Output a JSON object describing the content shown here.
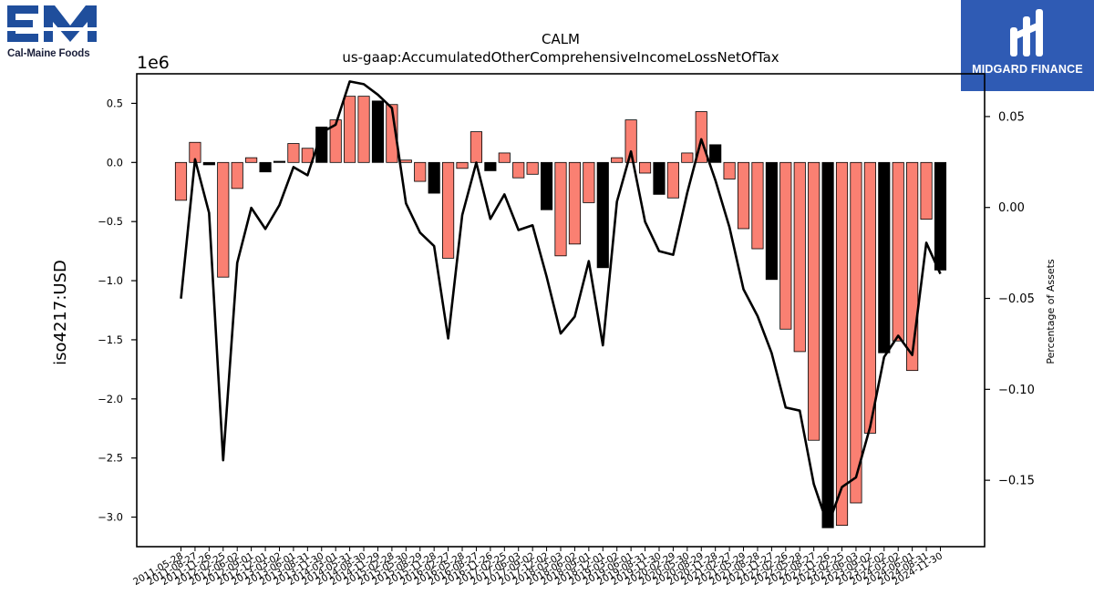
{
  "logos": {
    "left_brand": "Cal-Maine Foods",
    "left_mark": "EM",
    "right_brand": "MIDGARD FINANCE",
    "right_bg_color": "#2f5bb4",
    "left_color": "#1f4e9c"
  },
  "chart_data": {
    "type": "bar",
    "title": "CALM",
    "subtitle": "us-gaap:AccumulatedOtherComprehensiveIncomeLossNetOfTax",
    "ylabel": "iso4217:USD",
    "y_offset_label": "1e6",
    "y2label": "Percentage of Assets",
    "ylim": [
      -3.25,
      0.75
    ],
    "y2lim": [
      -0.1865,
      0.0735
    ],
    "yticks": [
      "0.5",
      "0.0",
      "−0.5",
      "−1.0",
      "−1.5",
      "−2.0",
      "−2.5",
      "−3.0"
    ],
    "y2ticks": [
      "0.05",
      "0.00",
      "−0.05",
      "−0.10",
      "−0.15"
    ],
    "bar_colors": {
      "salmon": "#fa8072",
      "black": "#000000"
    },
    "categories": [
      "2011-05-28",
      "2011-08-27",
      "2011-11-26",
      "2012-02-25",
      "2012-06-02",
      "2012-09-01",
      "2012-12-01",
      "2013-03-02",
      "2013-06-01",
      "2013-08-31",
      "2013-11-30",
      "2014-03-01",
      "2014-05-31",
      "2014-08-30",
      "2014-11-29",
      "2015-02-28",
      "2015-05-30",
      "2015-08-29",
      "2015-11-28",
      "2016-02-27",
      "2016-05-28",
      "2016-08-27",
      "2016-11-26",
      "2017-02-25",
      "2017-06-03",
      "2017-09-02",
      "2017-12-02",
      "2018-03-03",
      "2018-06-02",
      "2018-09-01",
      "2018-12-01",
      "2019-03-02",
      "2019-06-01",
      "2019-08-31",
      "2019-11-30",
      "2020-02-29",
      "2020-05-30",
      "2020-08-29",
      "2020-11-28",
      "2021-02-27",
      "2021-05-29",
      "2021-08-28",
      "2021-11-27",
      "2022-02-26",
      "2022-05-28",
      "2022-08-27",
      "2022-11-26",
      "2023-02-25",
      "2023-06-03",
      "2023-09-02",
      "2023-12-02",
      "2024-03-02",
      "2024-06-01",
      "2024-08-31",
      "2024-11-30"
    ],
    "series": [
      {
        "values": [
          -0.32,
          0.17,
          -0.02,
          -0.97,
          -0.22,
          0.04,
          -0.08,
          0.01,
          0.16,
          0.12,
          0.3,
          0.36,
          0.56,
          0.56,
          0.52,
          0.49,
          0.02,
          -0.16,
          -0.26,
          -0.81,
          -0.05,
          0.26,
          -0.07,
          0.08,
          -0.13,
          -0.1,
          -0.4,
          -0.79,
          -0.69,
          -0.34,
          -0.89,
          0.04,
          0.36,
          -0.09,
          -0.27,
          -0.3,
          0.08,
          0.43,
          0.15,
          -0.14,
          -0.56,
          -0.73,
          -0.99,
          -1.41,
          -1.6,
          -2.35,
          -3.09,
          -3.07,
          -2.88,
          -2.29,
          -1.61,
          -1.51,
          -1.76,
          -0.48,
          -0.91
        ],
        "bar_color_keys": [
          "salmon",
          "salmon",
          "black",
          "salmon",
          "salmon",
          "salmon",
          "black",
          "black",
          "salmon",
          "salmon",
          "black",
          "salmon",
          "salmon",
          "salmon",
          "black",
          "salmon",
          "salmon",
          "salmon",
          "black",
          "salmon",
          "salmon",
          "salmon",
          "black",
          "salmon",
          "salmon",
          "salmon",
          "black",
          "salmon",
          "salmon",
          "salmon",
          "black",
          "salmon",
          "salmon",
          "salmon",
          "black",
          "salmon",
          "salmon",
          "salmon",
          "black",
          "salmon",
          "salmon",
          "salmon",
          "black",
          "salmon",
          "salmon",
          "salmon",
          "black",
          "salmon",
          "salmon",
          "salmon",
          "black",
          "salmon",
          "salmon",
          "salmon",
          "black"
        ]
      },
      {
        "axis": "right",
        "values": [
          -0.0501,
          0.0265,
          -0.003,
          -0.139,
          -0.0305,
          -0.0002,
          -0.0118,
          0.0013,
          0.0222,
          0.0177,
          0.0412,
          0.0455,
          0.0693,
          0.0678,
          0.062,
          0.0547,
          0.0023,
          -0.0138,
          -0.0212,
          -0.072,
          -0.0042,
          0.0247,
          -0.0063,
          0.0072,
          -0.0124,
          -0.0098,
          -0.038,
          -0.0693,
          -0.06,
          -0.0295,
          -0.0758,
          0.0032,
          0.0308,
          -0.0078,
          -0.024,
          -0.026,
          0.0081,
          0.0375,
          0.015,
          -0.0108,
          -0.045,
          -0.0597,
          -0.08,
          -0.11,
          -0.1117,
          -0.1521,
          -0.1749,
          -0.1537,
          -0.1484,
          -0.1208,
          -0.0822,
          -0.0705,
          -0.0811,
          -0.0194,
          -0.0365
        ]
      }
    ]
  }
}
